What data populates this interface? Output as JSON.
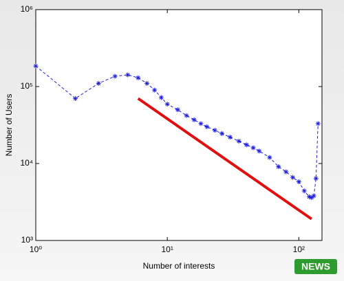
{
  "chart_data": {
    "type": "line",
    "xlabel": "Number of interests",
    "ylabel": "Number of Users",
    "log_x": true,
    "log_y": true,
    "xlim": [
      1,
      150
    ],
    "ylim": [
      1000,
      1000000
    ],
    "xticks": [
      {
        "value": 1,
        "label": "10⁰"
      },
      {
        "value": 10,
        "label": "10¹"
      },
      {
        "value": 100,
        "label": "10²"
      }
    ],
    "yticks": [
      {
        "value": 1000,
        "label": "10³"
      },
      {
        "value": 10000,
        "label": "10⁴"
      },
      {
        "value": 100000,
        "label": "10⁵"
      },
      {
        "value": 1000000,
        "label": "10⁶"
      }
    ],
    "series": [
      {
        "color": "#1f1fd8",
        "line_style": "dashed",
        "marker": "star",
        "x": [
          1,
          2,
          3,
          4,
          5,
          6,
          7,
          8,
          9,
          10,
          12,
          14,
          16,
          18,
          20,
          23,
          26,
          30,
          35,
          40,
          45,
          50,
          60,
          70,
          80,
          90,
          100,
          110,
          120,
          125,
          130,
          135,
          140
        ],
        "values": [
          185000,
          70000,
          110000,
          136000,
          142000,
          130000,
          110000,
          90000,
          72000,
          59000,
          50000,
          42000,
          37000,
          33000,
          30000,
          27000,
          24500,
          22000,
          19500,
          17500,
          16000,
          14500,
          12000,
          9100,
          7800,
          6600,
          5800,
          4400,
          3700,
          3600,
          3800,
          6400,
          33000
        ]
      },
      {
        "color": "#e01010",
        "line_style": "solid",
        "line_width": 4,
        "marker": "none",
        "x": [
          6,
          125
        ],
        "values": [
          70000,
          1900
        ]
      }
    ],
    "watermark": "NEWS"
  }
}
